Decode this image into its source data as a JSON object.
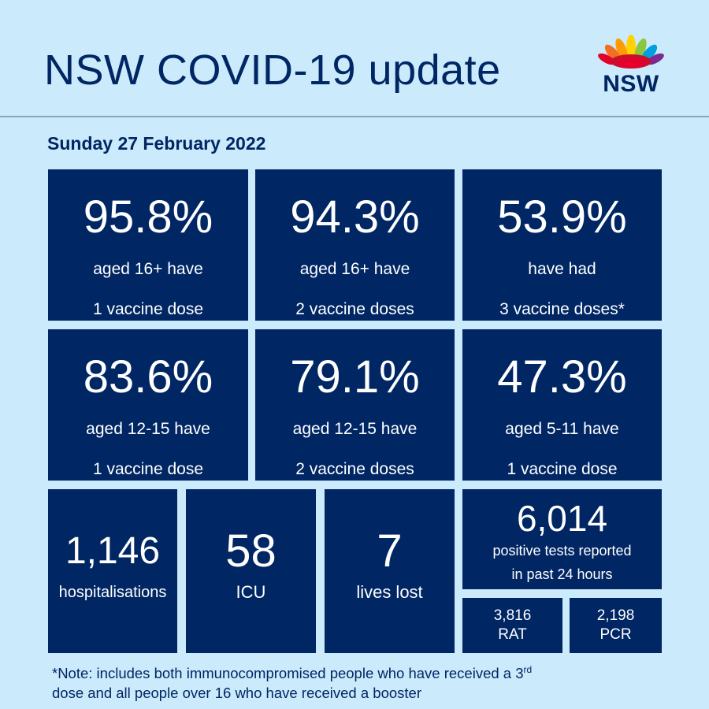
{
  "header": {
    "title": "NSW COVID-19 update",
    "logo_text": "NSW",
    "colors": {
      "navy": "#002664",
      "background": "#cbeafb"
    }
  },
  "date": "Sunday 27 February 2022",
  "vaccination": [
    {
      "value": "95.8%",
      "line1": "aged 16+ have",
      "line2": "1 vaccine dose"
    },
    {
      "value": "94.3%",
      "line1": "aged 16+ have",
      "line2": "2 vaccine doses"
    },
    {
      "value": "53.9%",
      "line1": "have had",
      "line2": "3 vaccine doses*"
    },
    {
      "value": "83.6%",
      "line1": "aged 12-15 have",
      "line2": "1 vaccine dose"
    },
    {
      "value": "79.1%",
      "line1": "aged 12-15 have",
      "line2": "2 vaccine doses"
    },
    {
      "value": "47.3%",
      "line1": "aged 5-11 have",
      "line2": "1 vaccine dose"
    }
  ],
  "stats": {
    "hospitalisations": {
      "value": "1,146",
      "label": "hospitalisations"
    },
    "icu": {
      "value": "58",
      "label": "ICU"
    },
    "lives_lost": {
      "value": "7",
      "label": "lives lost"
    },
    "positive": {
      "value": "6,014",
      "line1": "positive tests reported",
      "line2": "in past 24 hours"
    },
    "rat": {
      "value": "3,816",
      "label": "RAT"
    },
    "pcr": {
      "value": "2,198",
      "label": "PCR"
    }
  },
  "note": {
    "part1": "*Note: includes both immunocompromised  people who have received a 3",
    "sup": "rd",
    "part2": "dose and all people over 16 who have received a booster"
  }
}
